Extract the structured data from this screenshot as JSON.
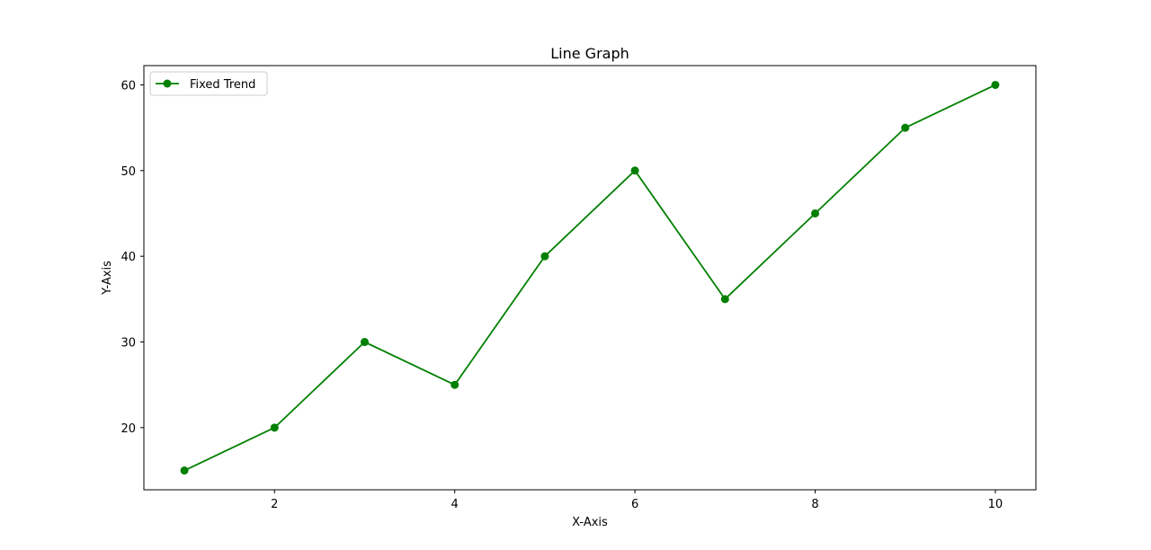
{
  "chart_data": {
    "type": "line",
    "title": "Line Graph",
    "xlabel": "X-Axis",
    "ylabel": "Y-Axis",
    "x": [
      1,
      2,
      3,
      4,
      5,
      6,
      7,
      8,
      9,
      10
    ],
    "series": [
      {
        "name": "Fixed Trend",
        "values": [
          15,
          20,
          30,
          25,
          40,
          50,
          35,
          45,
          55,
          60
        ],
        "color": "#008000",
        "marker": "circle"
      }
    ],
    "xlim": [
      0.55,
      10.45
    ],
    "ylim": [
      12.75,
      62.25
    ],
    "xticks": [
      2,
      4,
      6,
      8,
      10
    ],
    "yticks": [
      20,
      30,
      40,
      50,
      60
    ],
    "grid": false,
    "legend_position": "top-left"
  }
}
